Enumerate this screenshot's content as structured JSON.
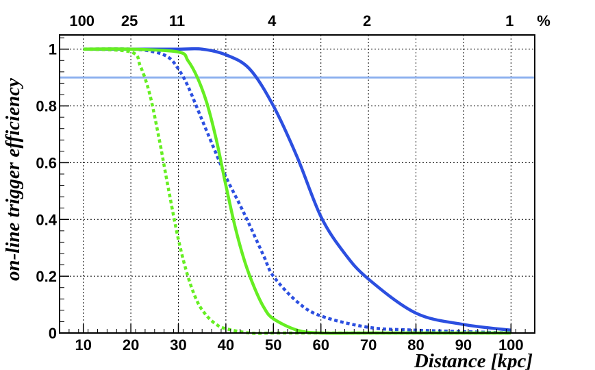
{
  "chart_data": {
    "type": "line",
    "xlabel": "Distance [kpc]",
    "ylabel": "on-line trigger efficiency",
    "xlim": [
      5,
      105
    ],
    "ylim": [
      0,
      1.05
    ],
    "x_ticks": [
      10,
      20,
      30,
      40,
      50,
      60,
      70,
      80,
      90,
      100
    ],
    "y_ticks": [
      0,
      0.2,
      0.4,
      0.6,
      0.8,
      1
    ],
    "y_tick_labels": [
      "0",
      "0.2",
      "0.4",
      "0.6",
      "0.8",
      "1"
    ],
    "grid": true,
    "top_axis": {
      "labels": [
        {
          "distance": 10,
          "text": "100"
        },
        {
          "distance": 20,
          "text": "25"
        },
        {
          "distance": 30,
          "text": "11"
        },
        {
          "distance": 50,
          "text": "4"
        },
        {
          "distance": 70,
          "text": "2"
        },
        {
          "distance": 100,
          "text": "1"
        }
      ],
      "unit": "%"
    },
    "reference_line": {
      "y": 0.9,
      "color": "#8fb2ef"
    },
    "series": [
      {
        "color": "#2c4fe0",
        "style": "solid",
        "x": [
          10,
          20,
          30,
          35,
          40,
          45,
          50,
          55,
          60,
          65,
          70,
          80,
          90,
          100
        ],
        "y": [
          1.0,
          1.0,
          1.0,
          1.0,
          0.98,
          0.93,
          0.8,
          0.62,
          0.41,
          0.28,
          0.19,
          0.07,
          0.03,
          0.01
        ]
      },
      {
        "color": "#2c4fe0",
        "style": "dotted",
        "x": [
          10,
          20,
          25,
          28,
          30,
          32,
          35,
          38,
          40,
          43,
          45,
          48,
          50,
          55,
          60,
          70,
          80,
          100
        ],
        "y": [
          1.0,
          1.0,
          0.99,
          0.97,
          0.93,
          0.87,
          0.75,
          0.63,
          0.55,
          0.45,
          0.38,
          0.27,
          0.2,
          0.11,
          0.06,
          0.02,
          0.01,
          0.0
        ]
      },
      {
        "color": "#66ee22",
        "style": "solid",
        "x": [
          10,
          20,
          30,
          32,
          34,
          36,
          38,
          40,
          42,
          44,
          46,
          48,
          50,
          55,
          60,
          70,
          100
        ],
        "y": [
          1.0,
          1.0,
          0.99,
          0.96,
          0.9,
          0.81,
          0.68,
          0.52,
          0.37,
          0.25,
          0.16,
          0.09,
          0.05,
          0.01,
          0.0,
          0.0,
          0.0
        ]
      },
      {
        "color": "#66ee22",
        "style": "dotted",
        "x": [
          10,
          20,
          22,
          24,
          26,
          27,
          28,
          30,
          32,
          34,
          36,
          38,
          40,
          45,
          50,
          60,
          100
        ],
        "y": [
          1.0,
          0.99,
          0.94,
          0.84,
          0.68,
          0.59,
          0.5,
          0.33,
          0.2,
          0.11,
          0.06,
          0.03,
          0.015,
          0.0,
          0.0,
          0.0,
          0.0
        ]
      }
    ]
  }
}
